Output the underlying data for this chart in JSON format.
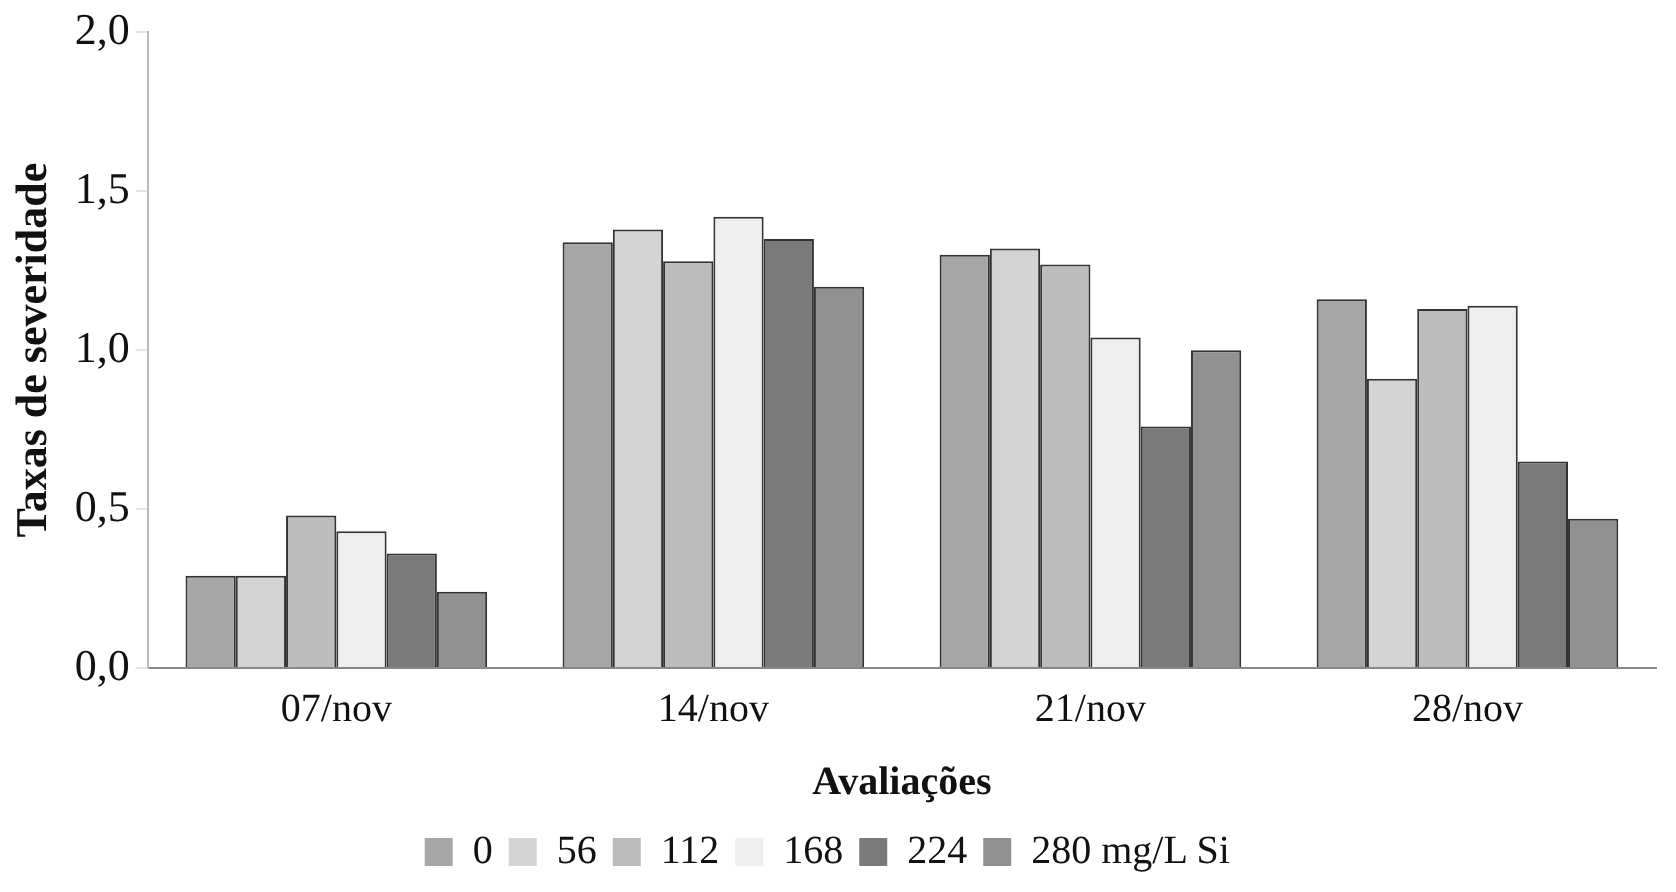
{
  "chart_data": {
    "type": "bar",
    "xlabel": "Avaliações",
    "ylabel": "Taxas de severidade",
    "categories": [
      "07/nov",
      "14/nov",
      "21/nov",
      "28/nov"
    ],
    "series": [
      {
        "name": "0",
        "color": "#a6a6a6",
        "values": [
          0.29,
          1.34,
          1.3,
          1.16
        ]
      },
      {
        "name": "56",
        "color": "#d4d4d4",
        "values": [
          0.29,
          1.38,
          1.32,
          0.91
        ]
      },
      {
        "name": "112",
        "color": "#bcbcbc",
        "values": [
          0.48,
          1.28,
          1.27,
          1.13
        ]
      },
      {
        "name": "168",
        "color": "#eeeeee",
        "values": [
          0.43,
          1.42,
          1.04,
          1.14
        ]
      },
      {
        "name": "224",
        "color": "#7a7a7a",
        "values": [
          0.36,
          1.35,
          0.76,
          0.65
        ]
      },
      {
        "name": "280 mg/L Si",
        "color": "#919191",
        "values": [
          0.24,
          1.2,
          1.0,
          0.47
        ]
      }
    ],
    "ylim": [
      0,
      2
    ],
    "yticks": [
      {
        "value": 0,
        "label": "0,0"
      },
      {
        "value": 0.5,
        "label": "0,5"
      },
      {
        "value": 1,
        "label": "1,0"
      },
      {
        "value": 1.5,
        "label": "1,5"
      },
      {
        "value": 2,
        "label": "2,0"
      }
    ],
    "grid": false,
    "legend": "bottom"
  }
}
